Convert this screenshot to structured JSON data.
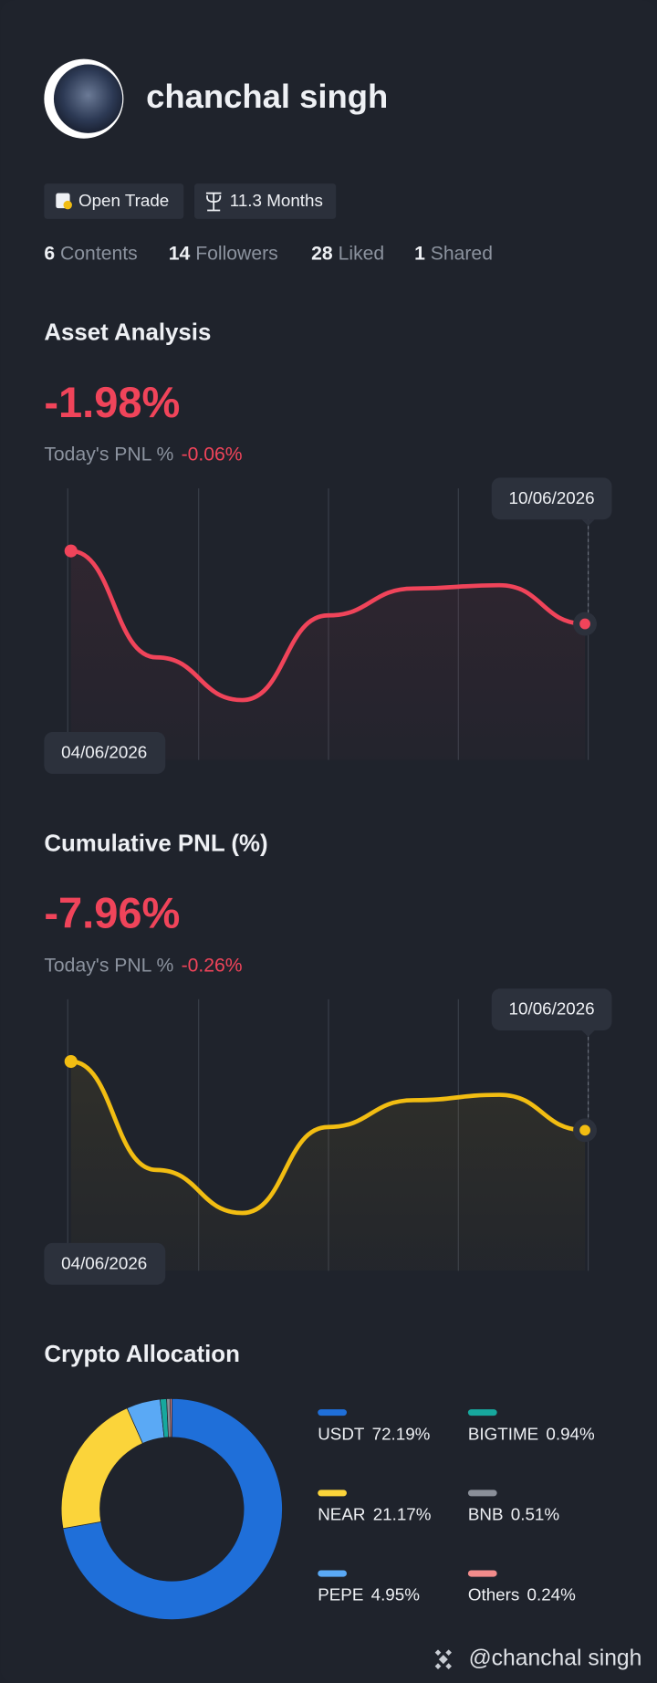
{
  "profile": {
    "name": "chanchal  singh",
    "badges": [
      "Open Trade",
      "11.3 Months"
    ],
    "stats": [
      {
        "count": 6,
        "label": "Contents"
      },
      {
        "count": 14,
        "label": "Followers"
      },
      {
        "count": 28,
        "label": "Liked"
      },
      {
        "count": 1,
        "label": "Shared"
      }
    ]
  },
  "chart_data": [
    {
      "type": "line",
      "title": "Asset Analysis",
      "value_label": "-1.98%",
      "today_label": "Today's PNL %",
      "today_value": "-0.06%",
      "categories": [
        "04/06/2026",
        null,
        null,
        null,
        null,
        null,
        "10/06/2026"
      ],
      "values": [
        0,
        -2.89,
        -4.05,
        -1.75,
        -1.02,
        -0.93,
        -1.98
      ],
      "color": "#f0445a",
      "ylim": [
        -5.5,
        1.7
      ]
    },
    {
      "type": "line",
      "title": "Cumulative PNL (%)",
      "value_label": "-7.96%",
      "today_label": "Today's PNL %",
      "today_value": "-0.26%",
      "categories": [
        "04/06/2026",
        null,
        null,
        null,
        null,
        null,
        "10/06/2026"
      ],
      "values": [
        0,
        -12.56,
        -17.54,
        -7.59,
        -4.48,
        -3.86,
        -7.96
      ],
      "color": "#f2bd12",
      "ylim": [
        -22,
        7.2
      ]
    },
    {
      "type": "pie",
      "title": "Crypto Allocation",
      "categories": [
        "USDT",
        "NEAR",
        "PEPE",
        "BIGTIME",
        "BNB",
        "Others"
      ],
      "values": [
        72.19,
        21.17,
        4.95,
        0.94,
        0.51,
        0.24
      ],
      "value_labels": [
        "72.19%",
        "21.17%",
        "4.95%",
        "0.94%",
        "0.51%",
        "0.24%"
      ],
      "colors": [
        "#1f6fd9",
        "#fbd43a",
        "#5aa9f5",
        "#17a89e",
        "#8a8f99",
        "#f28b8b"
      ]
    }
  ],
  "footer": {
    "handle": "@chanchal  singh"
  }
}
